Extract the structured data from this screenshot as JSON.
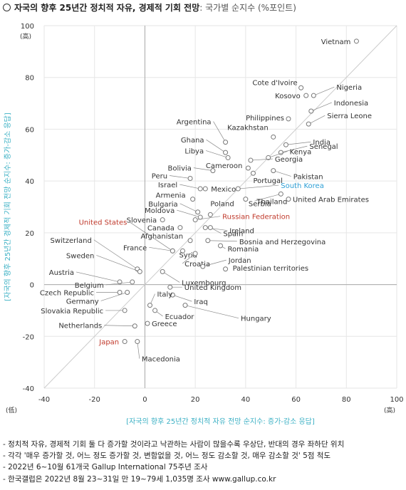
{
  "header": {
    "title": "자국의 향후 25년간 정치적 자유, 경제적 기회 전망",
    "subtitle": ": 국가별 순지수 (%포인트)"
  },
  "footnotes": [
    "- 정치적 자유, 경제적 기회 둘 다 증가할 것이라고 낙관하는 사람이 많을수록 우상단, 반대의 경우 좌하단 위치",
    "- 각각 '매우 증가할 것, 어느 정도 증가할 것, 변함없을 것, 어느 정도 감소할 것, 매우 감소할 것' 5점 척도",
    "- 2022년 6~10월 61개국 Gallup International 75주년 조사",
    "- 한국갤럽은 2022년 8월 23~31일 만 19~79세 1,035명 조사 www.gallup.co.kr"
  ],
  "colors": {
    "axis_title": "#3bb0c4",
    "point": "#777777",
    "label": "#333333",
    "highlight_blue": "#2e9fd6",
    "highlight_red": "#c0392b",
    "grid": "#e6e6e6",
    "diagonal": "#cccccc"
  },
  "chart_data": {
    "type": "scatter",
    "xlabel": "[자국의 향후 25년간 정치적 자유 전망 순지수: 증가-감소 응답]",
    "ylabel": "[자국의 향후 25년간 경제적 기회 전망 순지수: 증가-감소 응답]",
    "xlim": [
      -40,
      100
    ],
    "ylim": [
      -40,
      100
    ],
    "x_ticks": [
      -40,
      -20,
      0,
      20,
      40,
      60,
      80,
      100
    ],
    "y_ticks": [
      -40,
      -20,
      0,
      20,
      40,
      60,
      80,
      100
    ],
    "x_ticks_labels": [
      "-40",
      "-20",
      "0",
      "20",
      "40",
      "60",
      "80",
      "100"
    ],
    "y_ticks_labels": [
      "-40",
      "-20",
      "0",
      "20",
      "40",
      "60",
      "80",
      "100"
    ],
    "x_max_note": "(高)",
    "x_min_note": "(低)",
    "y_max_note": "(高)",
    "diagonal": true,
    "grid": true,
    "points": [
      {
        "name": "Vietnam",
        "x": 84,
        "y": 94,
        "highlight": ""
      },
      {
        "name": "Cote d'Ivoire",
        "x": 62,
        "y": 76,
        "highlight": ""
      },
      {
        "name": "Kosovo",
        "x": 64,
        "y": 73,
        "highlight": ""
      },
      {
        "name": "Nigeria",
        "x": 67,
        "y": 73,
        "highlight": ""
      },
      {
        "name": "Indonesia",
        "x": 66,
        "y": 67,
        "highlight": ""
      },
      {
        "name": "Philippines",
        "x": 57,
        "y": 64,
        "highlight": ""
      },
      {
        "name": "Sierra Leone",
        "x": 65,
        "y": 62,
        "highlight": ""
      },
      {
        "name": "Kazakhstan",
        "x": 51,
        "y": 57,
        "highlight": ""
      },
      {
        "name": "India",
        "x": 56,
        "y": 54,
        "highlight": ""
      },
      {
        "name": "Argentina",
        "x": 32,
        "y": 55,
        "highlight": ""
      },
      {
        "name": "Senegal",
        "x": 54,
        "y": 51,
        "highlight": ""
      },
      {
        "name": "Ghana",
        "x": 32,
        "y": 51,
        "highlight": ""
      },
      {
        "name": "Libya",
        "x": 33,
        "y": 49,
        "highlight": ""
      },
      {
        "name": "Kenya",
        "x": 49,
        "y": 49,
        "highlight": ""
      },
      {
        "name": "Georgia",
        "x": 42,
        "y": 48,
        "highlight": ""
      },
      {
        "name": "Cameroon",
        "x": 41,
        "y": 45,
        "highlight": ""
      },
      {
        "name": "Pakistan",
        "x": 51,
        "y": 44,
        "highlight": ""
      },
      {
        "name": "Bolivia",
        "x": 27,
        "y": 44,
        "highlight": ""
      },
      {
        "name": "Peru",
        "x": 18,
        "y": 41,
        "highlight": ""
      },
      {
        "name": "Portugal",
        "x": 43,
        "y": 43,
        "highlight": ""
      },
      {
        "name": "Israel",
        "x": 22,
        "y": 37,
        "highlight": ""
      },
      {
        "name": "Mexico",
        "x": 24,
        "y": 37,
        "highlight": ""
      },
      {
        "name": "South Korea",
        "x": 37,
        "y": 37,
        "highlight": "blue"
      },
      {
        "name": "Thailand",
        "x": 54,
        "y": 35,
        "highlight": ""
      },
      {
        "name": "Armenia",
        "x": 19,
        "y": 33,
        "highlight": ""
      },
      {
        "name": "Serbia",
        "x": 40,
        "y": 33,
        "highlight": ""
      },
      {
        "name": "United Arab Emirates",
        "x": 57,
        "y": 33,
        "highlight": ""
      },
      {
        "name": "Bulgaria",
        "x": 21,
        "y": 28,
        "highlight": ""
      },
      {
        "name": "Poland",
        "x": 26,
        "y": 27,
        "highlight": ""
      },
      {
        "name": "Moldova",
        "x": 22,
        "y": 26,
        "highlight": ""
      },
      {
        "name": "Slovenia",
        "x": 7,
        "y": 25,
        "highlight": ""
      },
      {
        "name": "Russian Federation",
        "x": 20,
        "y": 25,
        "highlight": "red"
      },
      {
        "name": "Canada",
        "x": 14,
        "y": 22,
        "highlight": ""
      },
      {
        "name": "Ireland",
        "x": 24,
        "y": 22,
        "highlight": ""
      },
      {
        "name": "Spain",
        "x": 26,
        "y": 22,
        "highlight": ""
      },
      {
        "name": "Afghanistan",
        "x": 18,
        "y": 17,
        "highlight": ""
      },
      {
        "name": "Bosnia and Herzegovina",
        "x": 25,
        "y": 17,
        "highlight": ""
      },
      {
        "name": "France",
        "x": 11,
        "y": 13,
        "highlight": ""
      },
      {
        "name": "Syria",
        "x": 15,
        "y": 13,
        "highlight": ""
      },
      {
        "name": "Romania",
        "x": 30,
        "y": 15,
        "highlight": ""
      },
      {
        "name": "Croatia",
        "x": 20,
        "y": 12,
        "highlight": ""
      },
      {
        "name": "United States",
        "x": 11,
        "y": 13,
        "highlight": "red"
      },
      {
        "name": "Jordan",
        "x": 23,
        "y": 7,
        "highlight": ""
      },
      {
        "name": "Palestinian territories",
        "x": 32,
        "y": 6,
        "highlight": ""
      },
      {
        "name": "Switzerland",
        "x": -3,
        "y": 6,
        "highlight": ""
      },
      {
        "name": "Sweden",
        "x": -2,
        "y": 5,
        "highlight": ""
      },
      {
        "name": "Luxembourg",
        "x": 7,
        "y": 5,
        "highlight": ""
      },
      {
        "name": "Austria",
        "x": -10,
        "y": 1,
        "highlight": ""
      },
      {
        "name": "Belgium",
        "x": -5,
        "y": 1,
        "highlight": ""
      },
      {
        "name": "United Kingdom",
        "x": 10,
        "y": -1,
        "highlight": ""
      },
      {
        "name": "Czech Republic",
        "x": -10,
        "y": -3,
        "highlight": ""
      },
      {
        "name": "Germany",
        "x": -7,
        "y": -3,
        "highlight": ""
      },
      {
        "name": "Iraq",
        "x": 11,
        "y": -4,
        "highlight": ""
      },
      {
        "name": "Slovakia Republic",
        "x": -8,
        "y": -10,
        "highlight": ""
      },
      {
        "name": "Italy",
        "x": 2,
        "y": -8,
        "highlight": ""
      },
      {
        "name": "Hungary",
        "x": 16,
        "y": -8,
        "highlight": ""
      },
      {
        "name": "Ecuador",
        "x": 4,
        "y": -10,
        "highlight": ""
      },
      {
        "name": "Netherlands",
        "x": -4,
        "y": -16,
        "highlight": ""
      },
      {
        "name": "Greece",
        "x": 1,
        "y": -15,
        "highlight": ""
      },
      {
        "name": "Macedonia",
        "x": -3,
        "y": -22,
        "highlight": ""
      },
      {
        "name": "Japan",
        "x": -8,
        "y": -22,
        "highlight": "red"
      }
    ]
  }
}
